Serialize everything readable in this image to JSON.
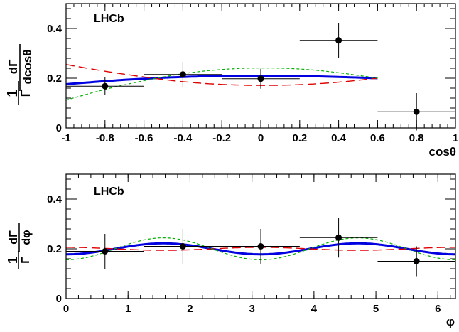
{
  "chart_data": [
    {
      "type": "scatter",
      "label": "LHCb",
      "xlabel": "cosθ",
      "ylabel_parts": {
        "one": "1",
        "gamma": "Γ",
        "numerator": "dΓ",
        "denominator": "dcosθ"
      },
      "xlim": [
        -1,
        1
      ],
      "ylim": [
        0,
        0.5
      ],
      "x_ticks": [
        -1,
        -0.8,
        -0.6,
        -0.4,
        -0.2,
        0,
        0.2,
        0.4,
        0.6,
        0.8,
        1
      ],
      "x_tick_labels": [
        "-1",
        "-0.8",
        "-0.6",
        "-0.4",
        "-0.2",
        "0",
        "0.2",
        "0.4",
        "0.6",
        "0.8",
        "1"
      ],
      "y_ticks": [
        0,
        0.2,
        0.4
      ],
      "y_tick_labels": [
        "0",
        "0.2",
        "0.4"
      ],
      "points": [
        {
          "x": -0.8,
          "y": 0.168,
          "xerr": 0.2,
          "yerr": 0.035
        },
        {
          "x": -0.4,
          "y": 0.215,
          "xerr": 0.2,
          "yerr": 0.05
        },
        {
          "x": 0.0,
          "y": 0.198,
          "xerr": 0.2,
          "yerr": 0.04
        },
        {
          "x": 0.4,
          "y": 0.352,
          "xerr": 0.2,
          "yerr": 0.07
        },
        {
          "x": 0.8,
          "y": 0.065,
          "xerr": 0.2,
          "yerr": 0.075
        }
      ],
      "curves": [
        {
          "style": "solid",
          "color": "#0000e0",
          "x": [
            -1,
            -0.8,
            -0.6,
            -0.4,
            -0.2,
            0,
            0.2,
            0.4,
            0.6
          ],
          "y": [
            0.176,
            0.188,
            0.198,
            0.205,
            0.209,
            0.21,
            0.209,
            0.205,
            0.2
          ]
        },
        {
          "style": "long-dash",
          "color": "#e00000",
          "x": [
            -1,
            -0.8,
            -0.6,
            -0.4,
            -0.2,
            0,
            0.2,
            0.4,
            0.6
          ],
          "y": [
            0.255,
            0.228,
            0.205,
            0.186,
            0.175,
            0.171,
            0.174,
            0.184,
            0.2
          ]
        },
        {
          "style": "short-dash",
          "color": "#00b000",
          "x": [
            -1,
            -0.8,
            -0.6,
            -0.4,
            -0.2,
            0,
            0.2,
            0.4,
            0.6
          ],
          "y": [
            0.112,
            0.155,
            0.19,
            0.218,
            0.235,
            0.241,
            0.237,
            0.222,
            0.2
          ]
        }
      ]
    },
    {
      "type": "scatter",
      "label": "LHCb",
      "xlabel": "φ",
      "ylabel_parts": {
        "one": "1",
        "gamma": "Γ",
        "numerator": "dΓ",
        "denominator": "dφ"
      },
      "xlim": [
        0,
        6.2832
      ],
      "ylim": [
        0,
        0.5
      ],
      "x_ticks": [
        0,
        1,
        2,
        3,
        4,
        5,
        6
      ],
      "x_tick_labels": [
        "0",
        "1",
        "2",
        "3",
        "4",
        "5",
        "6"
      ],
      "y_ticks": [
        0,
        0.2,
        0.4
      ],
      "y_tick_labels": [
        "0",
        "0.2",
        "0.4"
      ],
      "points": [
        {
          "x": 0.628,
          "y": 0.19,
          "xerr": 0.628,
          "yerr": 0.07
        },
        {
          "x": 1.885,
          "y": 0.21,
          "xerr": 0.628,
          "yerr": 0.07
        },
        {
          "x": 3.142,
          "y": 0.21,
          "xerr": 0.628,
          "yerr": 0.07
        },
        {
          "x": 4.398,
          "y": 0.245,
          "xerr": 0.628,
          "yerr": 0.08
        },
        {
          "x": 5.655,
          "y": 0.15,
          "xerr": 0.628,
          "yerr": 0.06
        }
      ],
      "curves": [
        {
          "style": "solid",
          "color": "#0000e0",
          "func": "0.2 - 0.022*cos(2*x)"
        },
        {
          "style": "long-dash",
          "color": "#e00000",
          "func": "0.2 + 0.006*cos(2*x)"
        },
        {
          "style": "short-dash",
          "color": "#00b000",
          "func": "0.2 - 0.044*cos(2*x)"
        }
      ]
    }
  ]
}
